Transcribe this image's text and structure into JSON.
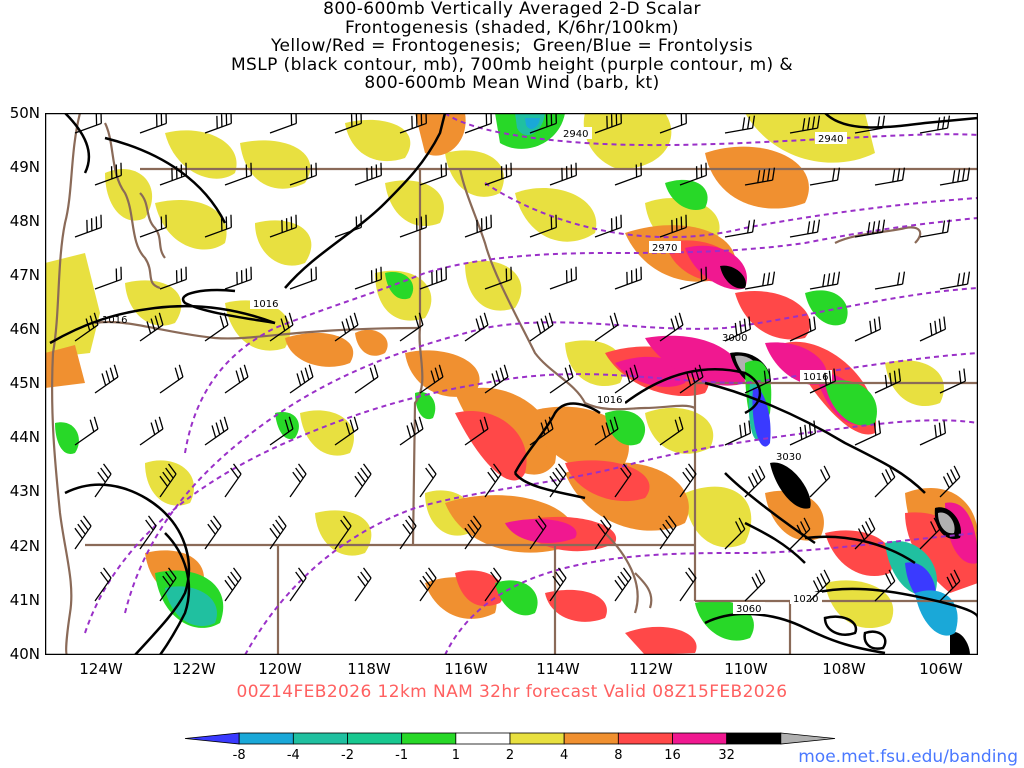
{
  "title_lines": [
    "800-600mb Vertically Averaged 2-D Scalar",
    "Frontogenesis (shaded, K/6hr/100km)",
    "Yellow/Red = Frontogenesis;  Green/Blue = Frontolysis",
    "MSLP (black contour, mb), 700mb height (purple contour, m) &",
    "800-600mb Mean Wind (barb, kt)"
  ],
  "lat_labels": [
    "50N",
    "49N",
    "48N",
    "47N",
    "46N",
    "45N",
    "44N",
    "43N",
    "42N",
    "41N",
    "40N"
  ],
  "lon_labels": [
    "124W",
    "122W",
    "120W",
    "118W",
    "116W",
    "114W",
    "112W",
    "110W",
    "108W",
    "106W"
  ],
  "contour_labels": {
    "mslp": [
      "1016",
      "1016",
      "1016",
      "1016",
      "1020"
    ],
    "height": [
      "2940",
      "2940",
      "2970",
      "3000",
      "3030",
      "3060"
    ],
    "mslp_partial": "1016"
  },
  "subtitle": "00Z14FEB2026 12km NAM 32hr forecast Valid 08Z15FEB2026",
  "colorbar": {
    "labels": [
      "-8",
      "-4",
      "-2",
      "-1",
      "1",
      "2",
      "4",
      "8",
      "16",
      "32"
    ],
    "colors": [
      "#3a3aff",
      "#1aa8d8",
      "#20c0a0",
      "#18c890",
      "#28d828",
      "#ffffff",
      "#e8e040",
      "#f09030",
      "#ff4848",
      "#f01890",
      "#000000",
      "#b0b0b0"
    ]
  },
  "credit": "moe.met.fsu.edu/banding"
}
